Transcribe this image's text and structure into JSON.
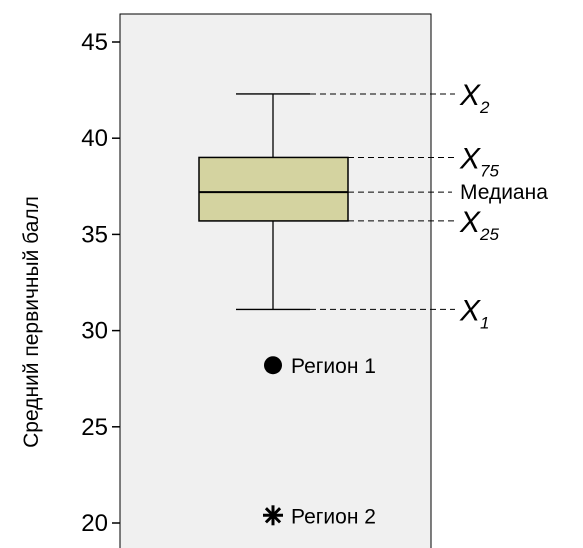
{
  "chart_data": {
    "type": "boxplot",
    "ylabel": "Средний первичный балл",
    "ylim": [
      19.2,
      46.4
    ],
    "yticks": [
      20,
      25,
      30,
      35,
      40,
      45
    ],
    "grid": false,
    "box": {
      "whisker_low": 31.1,
      "q1": 35.7,
      "median": 37.2,
      "q3": 39.0,
      "whisker_high": 42.3
    },
    "annotations": [
      {
        "stat": "whisker_high",
        "label": "X",
        "sub": "2"
      },
      {
        "stat": "q3",
        "label": "X",
        "sub": "75"
      },
      {
        "stat": "median",
        "label": "Медиана",
        "sub": ""
      },
      {
        "stat": "q1",
        "label": "X",
        "sub": "25"
      },
      {
        "stat": "whisker_low",
        "label": "X",
        "sub": "1"
      }
    ],
    "outliers": [
      {
        "name": "Регион 1",
        "value": 28.2,
        "marker": "circle"
      },
      {
        "name": "Регион 2",
        "value": 20.4,
        "marker": "asterisk"
      }
    ],
    "colors": {
      "plot_bg": "#f0f0f0",
      "box_fill": "#d4d3a0",
      "stroke": "#000000",
      "leader": "#000000"
    }
  }
}
